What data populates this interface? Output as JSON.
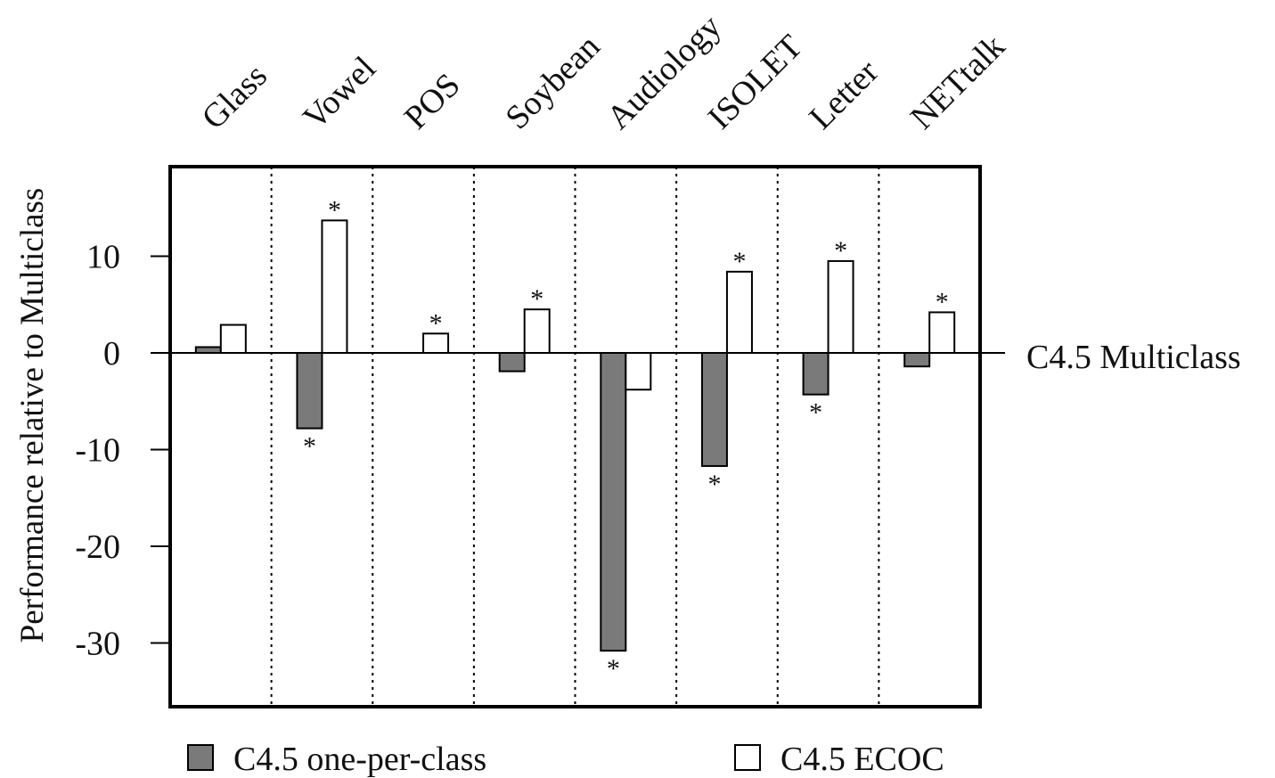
{
  "chart_data": {
    "type": "bar",
    "categories": [
      "Glass",
      "Vowel",
      "POS",
      "Soybean",
      "Audiology",
      "ISOLET",
      "Letter",
      "NETtalk"
    ],
    "ylabel": "Performance relative to Multiclass",
    "xlabel": "",
    "ylim": [
      -36.5,
      19.5
    ],
    "yticks": [
      10,
      0,
      -10,
      -20,
      -30
    ],
    "ytick_labels": [
      "10",
      "0",
      "-10",
      "-20",
      "-30"
    ],
    "reference_line": {
      "value": 0,
      "label": "C4.5 Multiclass"
    },
    "category_label_position": "top, rotated",
    "category_separators": "dotted vertical lines",
    "significance_marker": "*",
    "legend_position": "bottom",
    "series": [
      {
        "name": "C4.5 one-per-class",
        "color": "#7a7a7a",
        "values": [
          0.6,
          -7.8,
          0,
          -1.9,
          -30.8,
          -11.7,
          -4.3,
          -1.4
        ],
        "significant": [
          false,
          true,
          false,
          false,
          true,
          true,
          true,
          false
        ]
      },
      {
        "name": "C4.5 ECOC",
        "color": "#ffffff",
        "values": [
          2.9,
          13.7,
          2.0,
          4.5,
          -3.8,
          8.4,
          9.5,
          4.2
        ],
        "significant": [
          false,
          true,
          true,
          true,
          false,
          true,
          true,
          true
        ]
      }
    ]
  }
}
